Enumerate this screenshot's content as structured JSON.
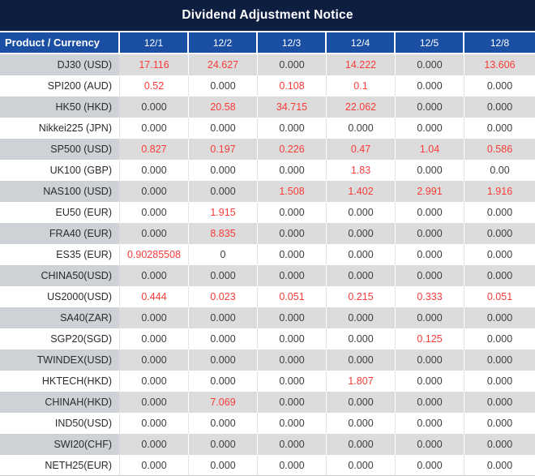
{
  "chart_data": {
    "type": "table",
    "title": "Dividend Adjustment Notice",
    "columns": [
      "Product / Currency",
      "12/1",
      "12/2",
      "12/3",
      "12/4",
      "12/5",
      "12/8"
    ],
    "rows": [
      {
        "product": "DJ30 (USD)",
        "values": [
          "17.116",
          "24.627",
          "0.000",
          "14.222",
          "0.000",
          "13.606"
        ],
        "red": [
          true,
          true,
          false,
          true,
          false,
          true
        ]
      },
      {
        "product": "SPI200 (AUD)",
        "values": [
          "0.52",
          "0.000",
          "0.108",
          "0.1",
          "0.000",
          "0.000"
        ],
        "red": [
          true,
          false,
          true,
          true,
          false,
          false
        ]
      },
      {
        "product": "HK50 (HKD)",
        "values": [
          "0.000",
          "20.58",
          "34.715",
          "22.062",
          "0.000",
          "0.000"
        ],
        "red": [
          false,
          true,
          true,
          true,
          false,
          false
        ]
      },
      {
        "product": "Nikkei225 (JPN)",
        "values": [
          "0.000",
          "0.000",
          "0.000",
          "0.000",
          "0.000",
          "0.000"
        ],
        "red": [
          false,
          false,
          false,
          false,
          false,
          false
        ]
      },
      {
        "product": "SP500 (USD)",
        "values": [
          "0.827",
          "0.197",
          "0.226",
          "0.47",
          "1.04",
          "0.586"
        ],
        "red": [
          true,
          true,
          true,
          true,
          true,
          true
        ]
      },
      {
        "product": "UK100 (GBP)",
        "values": [
          "0.000",
          "0.000",
          "0.000",
          "1.83",
          "0.000",
          "0.00"
        ],
        "red": [
          false,
          false,
          false,
          true,
          false,
          false
        ]
      },
      {
        "product": "NAS100 (USD)",
        "values": [
          "0.000",
          "0.000",
          "1.508",
          "1.402",
          "2.991",
          "1.916"
        ],
        "red": [
          false,
          false,
          true,
          true,
          true,
          true
        ]
      },
      {
        "product": "EU50 (EUR)",
        "values": [
          "0.000",
          "1.915",
          "0.000",
          "0.000",
          "0.000",
          "0.000"
        ],
        "red": [
          false,
          true,
          false,
          false,
          false,
          false
        ]
      },
      {
        "product": "FRA40 (EUR)",
        "values": [
          "0.000",
          "8.835",
          "0.000",
          "0.000",
          "0.000",
          "0.000"
        ],
        "red": [
          false,
          true,
          false,
          false,
          false,
          false
        ]
      },
      {
        "product": "ES35 (EUR)",
        "values": [
          "0.90285508",
          "0",
          "0.000",
          "0.000",
          "0.000",
          "0.000"
        ],
        "red": [
          true,
          false,
          false,
          false,
          false,
          false
        ]
      },
      {
        "product": "CHINA50(USD)",
        "values": [
          "0.000",
          "0.000",
          "0.000",
          "0.000",
          "0.000",
          "0.000"
        ],
        "red": [
          false,
          false,
          false,
          false,
          false,
          false
        ]
      },
      {
        "product": "US2000(USD)",
        "values": [
          "0.444",
          "0.023",
          "0.051",
          "0.215",
          "0.333",
          "0.051"
        ],
        "red": [
          true,
          true,
          true,
          true,
          true,
          true
        ]
      },
      {
        "product": "SA40(ZAR)",
        "values": [
          "0.000",
          "0.000",
          "0.000",
          "0.000",
          "0.000",
          "0.000"
        ],
        "red": [
          false,
          false,
          false,
          false,
          false,
          false
        ]
      },
      {
        "product": "SGP20(SGD)",
        "values": [
          "0.000",
          "0.000",
          "0.000",
          "0.000",
          "0.125",
          "0.000"
        ],
        "red": [
          false,
          false,
          false,
          false,
          true,
          false
        ]
      },
      {
        "product": "TWINDEX(USD)",
        "values": [
          "0.000",
          "0.000",
          "0.000",
          "0.000",
          "0.000",
          "0.000"
        ],
        "red": [
          false,
          false,
          false,
          false,
          false,
          false
        ]
      },
      {
        "product": "HKTECH(HKD)",
        "values": [
          "0.000",
          "0.000",
          "0.000",
          "1.807",
          "0.000",
          "0.000"
        ],
        "red": [
          false,
          false,
          false,
          true,
          false,
          false
        ]
      },
      {
        "product": "CHINAH(HKD)",
        "values": [
          "0.000",
          "7.069",
          "0.000",
          "0.000",
          "0.000",
          "0.000"
        ],
        "red": [
          false,
          true,
          false,
          false,
          false,
          false
        ]
      },
      {
        "product": "IND50(USD)",
        "values": [
          "0.000",
          "0.000",
          "0.000",
          "0.000",
          "0.000",
          "0.000"
        ],
        "red": [
          false,
          false,
          false,
          false,
          false,
          false
        ]
      },
      {
        "product": "SWI20(CHF)",
        "values": [
          "0.000",
          "0.000",
          "0.000",
          "0.000",
          "0.000",
          "0.000"
        ],
        "red": [
          false,
          false,
          false,
          false,
          false,
          false
        ]
      },
      {
        "product": "NETH25(EUR)",
        "values": [
          "0.000",
          "0.000",
          "0.000",
          "0.000",
          "0.000",
          "0.000"
        ],
        "red": [
          false,
          false,
          false,
          false,
          false,
          false
        ]
      }
    ],
    "layout": {
      "row_striping": "first row shaded, alternating",
      "value_alignment": "center",
      "product_alignment": "right"
    }
  },
  "colors": {
    "title_bg": "#0d1e41",
    "header_bg": "#1a4fa4",
    "header_text": "#ffffff",
    "row_alt_bg": "#dcdcdc",
    "product_alt_bg": "#ced1d6",
    "value_text": "#3d3d3d",
    "highlight_text": "#fa3b38"
  }
}
